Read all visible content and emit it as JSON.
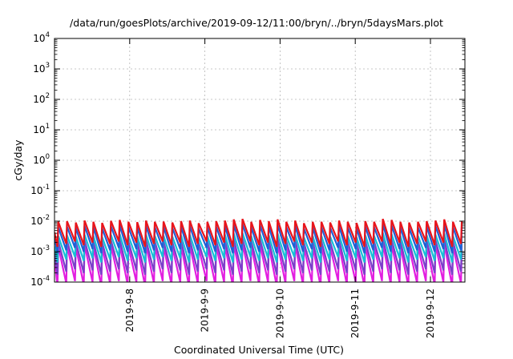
{
  "chart_data": {
    "type": "line",
    "title": "/data/run/goesPlots/archive/2019-09-12/11:00/bryn/../bryn/5daysMars.plot",
    "xlabel": "Coordinated Universal Time (UTC)",
    "ylabel": "cGy/day",
    "yscale": "log",
    "ylim": [
      0.0001,
      10000
    ],
    "xlim": [
      "2019-09-07 00:00",
      "2019-09-12 11:00"
    ],
    "grid": true,
    "legend": "none",
    "y_ticks": [
      {
        "base": "10",
        "exp": "-4"
      },
      {
        "base": "10",
        "exp": "-3"
      },
      {
        "base": "10",
        "exp": "-2"
      },
      {
        "base": "10",
        "exp": "-1"
      },
      {
        "base": "10",
        "exp": "0"
      },
      {
        "base": "10",
        "exp": "1"
      },
      {
        "base": "10",
        "exp": "2"
      },
      {
        "base": "10",
        "exp": "3"
      },
      {
        "base": "10",
        "exp": "4"
      }
    ],
    "x_ticks": [
      "2019-9-8",
      "2019-9-9",
      "2019-9-10",
      "2019-9-11",
      "2019-9-12"
    ],
    "sawtooth": {
      "period_hours": 2.8,
      "peak_hours": [
        1.2,
        4.0,
        6.8,
        9.6,
        12.4,
        15.2,
        18.0,
        20.8,
        23.6,
        26.4,
        29.2,
        32.0,
        34.8,
        37.6,
        40.4,
        43.2,
        46.0,
        48.8,
        51.6,
        54.4,
        57.2,
        60.0,
        62.8,
        65.6,
        68.4,
        71.2,
        74.0,
        76.8,
        79.6,
        82.4,
        85.2,
        88.0,
        90.8,
        93.6,
        96.4,
        99.2,
        102.0,
        104.8,
        107.6,
        110.4,
        113.2,
        116.0,
        118.8,
        121.6,
        124.4,
        127.2,
        130.0
      ],
      "series_peak_trough": [
        {
          "color": "#e8141b",
          "peak": 0.0095,
          "trough": 0.0018
        },
        {
          "color": "#1f5fd6",
          "peak": 0.0064,
          "trough": 0.0011
        },
        {
          "color": "#16c0d6",
          "peak": 0.0033,
          "trough": 0.00055
        },
        {
          "color": "#7a3fc9",
          "peak": 0.0022,
          "trough": 0.00022
        },
        {
          "color": "#e21ee0",
          "peak": 0.0015,
          "trough": 9e-05
        }
      ],
      "cycle_scale": [
        1.0,
        1.05,
        0.95,
        1.1,
        1.0,
        0.92,
        1.08,
        1.15,
        1.0,
        0.98,
        1.1,
        1.0,
        1.02,
        0.95,
        1.05,
        1.1,
        0.9,
        1.0,
        1.05,
        1.1,
        1.2,
        1.25,
        1.0,
        1.15,
        1.05,
        1.2,
        1.0,
        1.1,
        0.9,
        1.0,
        1.0,
        0.95,
        1.1,
        1.0,
        0.92,
        1.05,
        1.0,
        1.25,
        1.15,
        1.0,
        0.95,
        1.0,
        1.05,
        1.1,
        1.2,
        1.0,
        1.05
      ]
    }
  }
}
